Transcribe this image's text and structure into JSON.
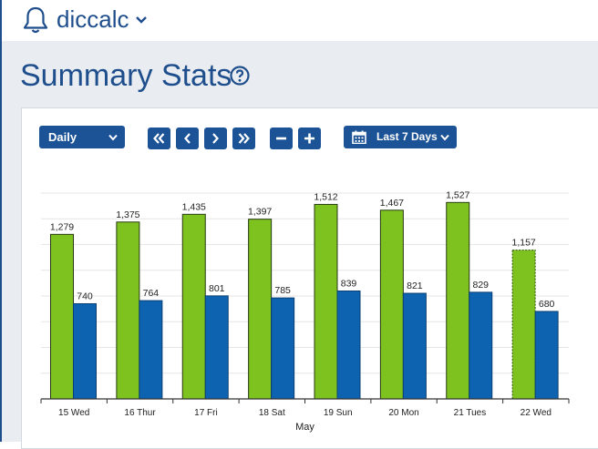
{
  "header": {
    "app_name": "diccalc",
    "icons": [
      "bell-icon",
      "chevron-down-icon"
    ]
  },
  "page": {
    "title": "Summary Stats",
    "help_icon": "question-circle-icon"
  },
  "toolbar": {
    "period": "Daily",
    "nav_icons": [
      "double-chevron-left-icon",
      "chevron-left-icon",
      "chevron-right-icon",
      "double-chevron-right-icon"
    ],
    "zoom_icons": [
      "minus-icon",
      "plus-icon"
    ],
    "range": "Last 7 Days",
    "range_icon": "calendar-icon"
  },
  "colors": {
    "brand": "#1c5296",
    "green": "#7dc21e",
    "blue": "#0d63b0",
    "background": "#e9edf2"
  },
  "chart_data": {
    "type": "bar",
    "categories": [
      "15 Wed",
      "16 Thur",
      "17 Fri",
      "18 Sat",
      "19 Sun",
      "20 Mon",
      "21 Tues",
      "22 Wed"
    ],
    "series": [
      {
        "values": [
          1279,
          1375,
          1435,
          1397,
          1512,
          1467,
          1527,
          1157
        ],
        "color": "#7dc21e",
        "labels": [
          "1,279",
          "1,375",
          "1,435",
          "1,397",
          "1,512",
          "1,467",
          "1,527",
          "1,157"
        ]
      },
      {
        "values": [
          740,
          764,
          801,
          785,
          839,
          821,
          829,
          680
        ],
        "color": "#0d63b0",
        "labels": [
          "740",
          "764",
          "801",
          "785",
          "839",
          "821",
          "829",
          "680"
        ]
      }
    ],
    "partial_last_category": true,
    "xlabel": "May",
    "ylabel": "",
    "ylim": [
      0,
      1600
    ],
    "grid": true
  }
}
